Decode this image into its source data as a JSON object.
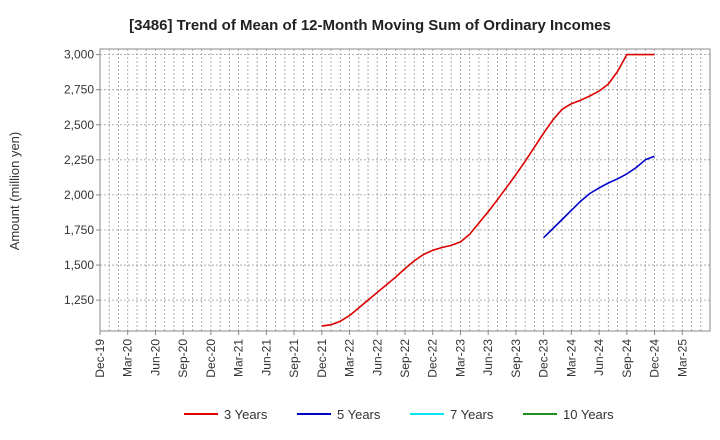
{
  "chart_data": {
    "type": "line",
    "title": "[3486]  Trend of Mean of 12-Month Moving Sum of Ordinary Incomes",
    "xlabel": "",
    "ylabel": "Amount (million yen)",
    "ylim": [
      1030,
      3040
    ],
    "yticks": [
      1250,
      1500,
      1750,
      2000,
      2250,
      2500,
      2750,
      3000
    ],
    "ytick_labels": [
      "1,250",
      "1,500",
      "1,750",
      "2,000",
      "2,250",
      "2,500",
      "2,750",
      "3,000"
    ],
    "x_range": [
      0,
      66
    ],
    "x_ticks": [
      "Dec-19",
      "Mar-20",
      "Jun-20",
      "Sep-20",
      "Dec-20",
      "Mar-21",
      "Jun-21",
      "Sep-21",
      "Dec-21",
      "Mar-22",
      "Jun-22",
      "Sep-22",
      "Dec-22",
      "Mar-23",
      "Jun-23",
      "Sep-23",
      "Dec-23",
      "Mar-24",
      "Jun-24",
      "Sep-24",
      "Dec-24",
      "Mar-25"
    ],
    "grid": true,
    "legend_position": "bottom",
    "series": [
      {
        "name": "3 Years",
        "color": "#dd0000",
        "x": [
          24,
          25,
          26,
          27,
          28,
          29,
          30,
          31,
          32,
          33,
          34,
          35,
          36,
          37,
          38,
          39,
          40,
          41,
          42,
          43,
          44,
          45,
          46,
          47,
          48,
          49,
          50,
          51,
          52,
          53,
          54,
          55,
          56,
          57,
          58,
          59,
          60
        ],
        "values": [
          1065,
          1075,
          1100,
          1140,
          1195,
          1250,
          1305,
          1360,
          1415,
          1475,
          1530,
          1575,
          1605,
          1625,
          1640,
          1665,
          1720,
          1800,
          1880,
          1965,
          2055,
          2145,
          2240,
          2340,
          2440,
          2535,
          2610,
          2650,
          2675,
          2705,
          2740,
          2790,
          2880,
          3000,
          3000,
          3000,
          3000
        ]
      },
      {
        "name": "5 Years",
        "color": "#0000cc",
        "x": [
          48,
          49,
          50,
          51,
          52,
          53,
          54,
          55,
          56,
          57,
          58,
          59,
          60
        ],
        "values": [
          1695,
          1760,
          1825,
          1890,
          1955,
          2010,
          2050,
          2085,
          2115,
          2150,
          2195,
          2250,
          2275
        ]
      },
      {
        "name": "7 Years",
        "color": "#00e5ee",
        "x": [],
        "values": []
      },
      {
        "name": "10 Years",
        "color": "#228b22",
        "x": [],
        "values": []
      }
    ]
  }
}
